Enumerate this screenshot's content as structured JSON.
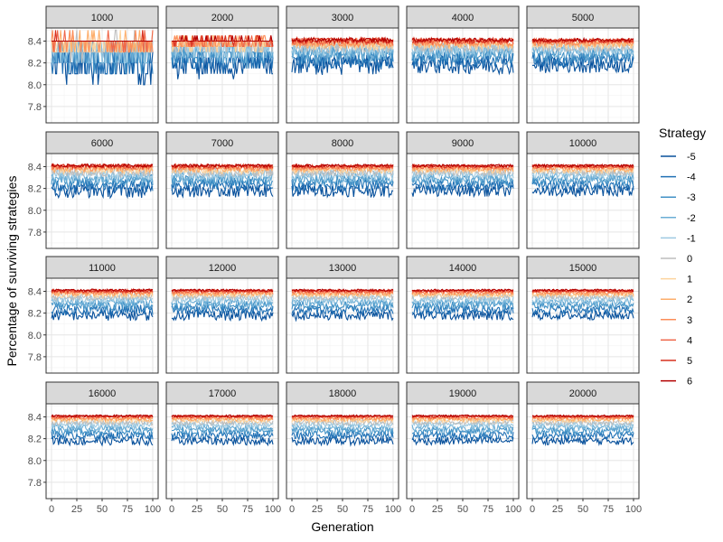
{
  "chart_data": {
    "type": "line",
    "facet_by": "population",
    "panels": [
      "1000",
      "2000",
      "3000",
      "4000",
      "5000",
      "6000",
      "7000",
      "8000",
      "9000",
      "10000",
      "11000",
      "12000",
      "13000",
      "14000",
      "15000",
      "16000",
      "17000",
      "18000",
      "19000",
      "20000"
    ],
    "xlabel": "Generation",
    "ylabel": "Percentage of surviving strategies",
    "xlim": [
      0,
      100
    ],
    "ylim": [
      7.65,
      8.52
    ],
    "x_ticks": [
      0,
      25,
      50,
      75,
      100
    ],
    "y_ticks": [
      7.8,
      8.0,
      8.2,
      8.4
    ],
    "x_tick_labels": [
      "0",
      "25",
      "50",
      "75",
      "100"
    ],
    "y_tick_labels": [
      "7.8",
      "8.0",
      "8.2",
      "8.4"
    ],
    "grid": true,
    "legend_position": "right",
    "legend_title": "Strategy",
    "series": [
      {
        "name": "-5",
        "color": "#08519c",
        "mean": 8.18
      },
      {
        "name": "-4",
        "color": "#2171b5",
        "mean": 8.23
      },
      {
        "name": "-3",
        "color": "#4292c6",
        "mean": 8.27
      },
      {
        "name": "-2",
        "color": "#6baed6",
        "mean": 8.3
      },
      {
        "name": "-1",
        "color": "#9ecae1",
        "mean": 8.33
      },
      {
        "name": "0",
        "color": "#bdbdbd",
        "mean": 8.35
      },
      {
        "name": "1",
        "color": "#fdd49e",
        "mean": 8.37
      },
      {
        "name": "2",
        "color": "#fdae6b",
        "mean": 8.38
      },
      {
        "name": "3",
        "color": "#fc8d59",
        "mean": 8.39
      },
      {
        "name": "4",
        "color": "#ef6548",
        "mean": 8.4
      },
      {
        "name": "5",
        "color": "#d7301f",
        "mean": 8.405
      },
      {
        "name": "6",
        "color": "#b30000",
        "mean": 8.41
      }
    ]
  }
}
